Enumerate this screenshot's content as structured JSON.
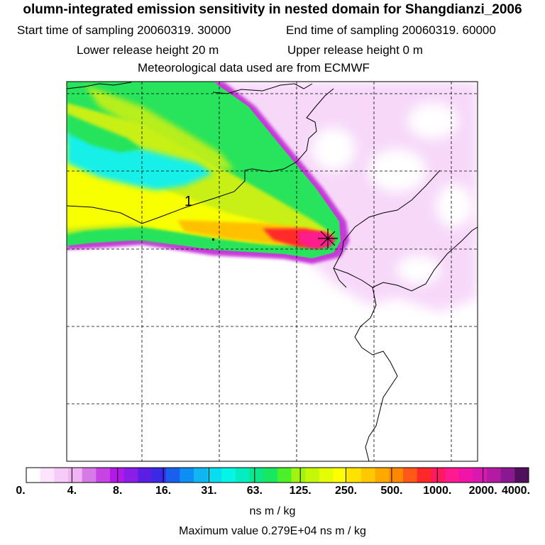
{
  "header": {
    "title": "olumn-integrated emission sensitivity in nested domain for Shangdianzi_2006",
    "start_label": "Start time of sampling 20060319. 30000",
    "end_label": "End time of sampling 20060319. 60000",
    "lower_label": "Lower release height   20 m",
    "upper_label": "Upper release height    0 m",
    "met_label": "Meteorological data used are from ECMWF"
  },
  "map": {
    "contour_label": "1",
    "colors": {
      "white": "#ffffff",
      "pink": "#f6d2f9",
      "magenta": "#c63ad8",
      "cyan": "#14f0e8",
      "green": "#28e35c",
      "yellow": "#f8ff05",
      "orange": "#ffc000",
      "red": "#ff2a2a",
      "hot": "#ff1a8c"
    }
  },
  "colorbar": {
    "colors": [
      "#ffffff",
      "#fce5fc",
      "#f6cbf7",
      "#f0b3f4",
      "#d77ae7",
      "#c544e3",
      "#b219e8",
      "#8c1ce8",
      "#5a1ee5",
      "#3a2ae6",
      "#1a60ee",
      "#0e8ef2",
      "#10b6f2",
      "#08ddf0",
      "#04f5e6",
      "#04ecc0",
      "#0ee68a",
      "#18e860",
      "#4cf028",
      "#a0f410",
      "#c4f808",
      "#e4fc04",
      "#ffff00",
      "#ffe200",
      "#ffc800",
      "#ffa800",
      "#ff8800",
      "#ff5818",
      "#ff2828",
      "#ff1a60",
      "#ff1a90",
      "#f014a8",
      "#d818b0",
      "#b41aa4",
      "#8a1890",
      "#50105c"
    ],
    "labels": [
      "0.",
      "4.",
      "8.",
      "16.",
      "31.",
      "63.",
      "125.",
      "250.",
      "500.",
      "1000.",
      "2000.",
      "4000."
    ],
    "units": "ns m / kg",
    "max_value_text": "Maximum value  0.279E+04 ns m / kg"
  }
}
